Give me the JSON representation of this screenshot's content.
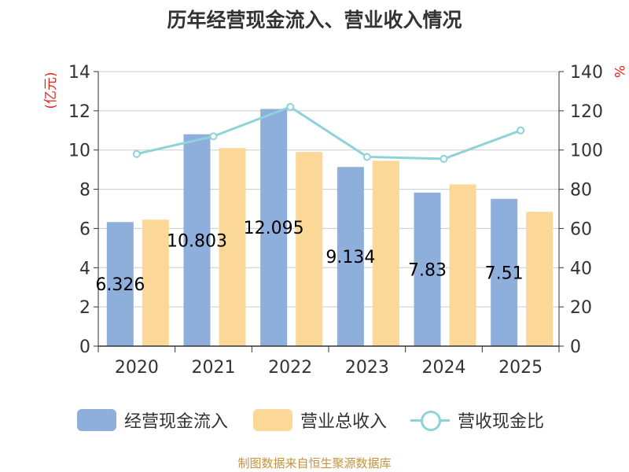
{
  "chart_data": {
    "type": "bar",
    "title": "历年经营现金流入、营业收入情况",
    "categories": [
      "2020",
      "2021",
      "2022",
      "2023",
      "2024",
      "2025"
    ],
    "y_left": {
      "label": "(亿元)",
      "range": [
        0,
        14
      ],
      "ticks": [
        0,
        2,
        4,
        6,
        8,
        10,
        12,
        14
      ]
    },
    "y_right": {
      "label": "%",
      "range": [
        0,
        140
      ],
      "ticks": [
        0,
        20,
        40,
        60,
        80,
        100,
        120,
        140
      ]
    },
    "grid": true,
    "legend_position": "bottom",
    "series": [
      {
        "name": "经营现金流入",
        "type": "bar",
        "axis": "left",
        "color": "#8eaedc",
        "values": [
          6.326,
          10.803,
          12.095,
          9.134,
          7.83,
          7.51
        ],
        "data_labels": [
          "6.326",
          "10.803",
          "12.095",
          "9.134",
          "7.83",
          "7.51"
        ]
      },
      {
        "name": "营业总收入",
        "type": "bar",
        "axis": "left",
        "color": "#fcd898",
        "values": [
          6.45,
          10.1,
          9.9,
          9.45,
          8.25,
          6.85
        ]
      },
      {
        "name": "营收现金比",
        "type": "line",
        "axis": "right",
        "color": "#8dd3d8",
        "values": [
          98,
          107,
          122,
          96.5,
          95.5,
          110
        ]
      }
    ]
  },
  "source": "制图数据来自恒生聚源数据库"
}
